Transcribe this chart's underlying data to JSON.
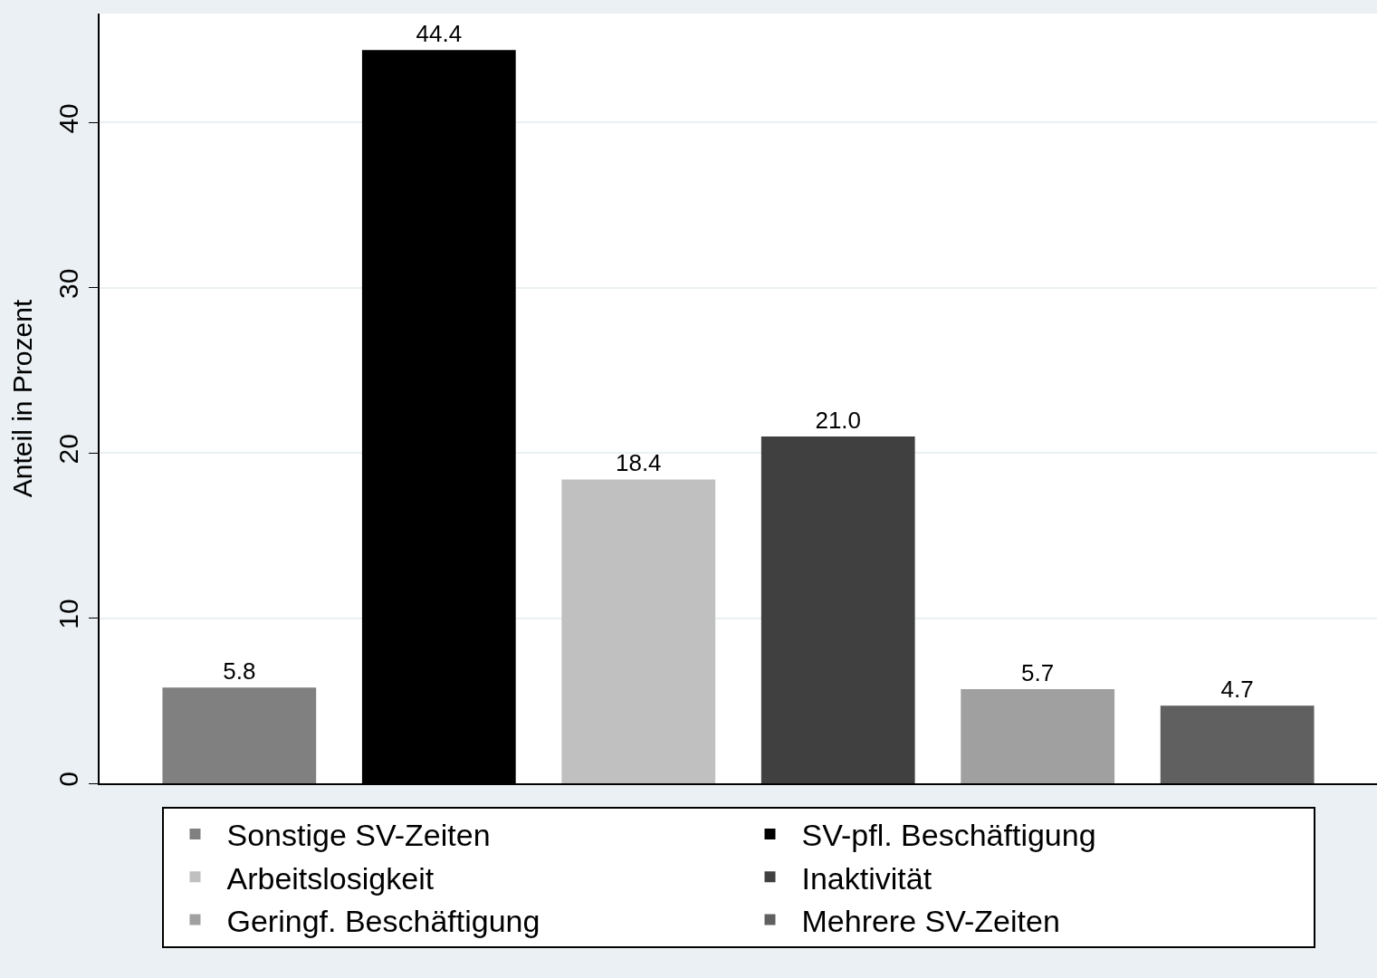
{
  "chart_data": {
    "type": "bar",
    "ylabel": "Anteil in Prozent",
    "categories": [
      null,
      null,
      null,
      null,
      null,
      null
    ],
    "series": [
      {
        "name": "Sonstige SV-Zeiten",
        "color": "#808080",
        "values": [
          5.8,
          null,
          null,
          null,
          null,
          null
        ],
        "value_labels": [
          "5.8",
          null,
          null,
          null,
          null,
          null
        ]
      },
      {
        "name": "SV-pfl. Beschäftigung",
        "color": "#000000",
        "values": [
          null,
          44.4,
          null,
          null,
          null,
          null
        ],
        "value_labels": [
          null,
          "44.4",
          null,
          null,
          null,
          null
        ]
      },
      {
        "name": "Arbeitslosigkeit",
        "color": "#c0c0c0",
        "values": [
          null,
          null,
          18.4,
          null,
          null,
          null
        ],
        "value_labels": [
          null,
          null,
          "18.4",
          null,
          null,
          null
        ]
      },
      {
        "name": "Inaktivität",
        "color": "#404040",
        "values": [
          null,
          null,
          null,
          21.0,
          null,
          null
        ],
        "value_labels": [
          null,
          null,
          null,
          "21.0",
          null,
          null
        ]
      },
      {
        "name": "Geringf. Beschäftigung",
        "color": "#a0a0a0",
        "values": [
          null,
          null,
          null,
          null,
          5.7,
          null
        ],
        "value_labels": [
          null,
          null,
          null,
          null,
          "5.7",
          null
        ]
      },
      {
        "name": "Mehrere SV-Zeiten",
        "color": "#606060",
        "values": [
          null,
          null,
          null,
          null,
          null,
          4.7
        ],
        "value_labels": [
          null,
          null,
          null,
          null,
          null,
          "4.7"
        ]
      }
    ],
    "ylim": [
      0,
      46.6
    ],
    "yticks": [
      0,
      10,
      20,
      30,
      40
    ],
    "grid": "y",
    "legend": "bottom",
    "tick_labels": "y"
  }
}
